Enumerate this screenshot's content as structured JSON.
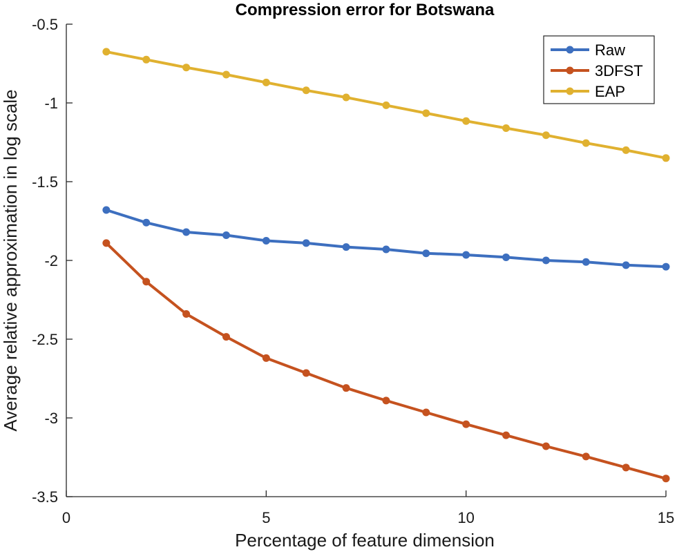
{
  "chart_data": {
    "type": "line",
    "title": "Compression error for Botswana",
    "xlabel": "Percentage of feature dimension",
    "ylabel": "Average relative approximation in log scale",
    "xlim": [
      0,
      15
    ],
    "ylim": [
      -3.5,
      -0.5
    ],
    "xticks": [
      0,
      5,
      10,
      15
    ],
    "xtick_labels": [
      "0",
      "5",
      "10",
      "15"
    ],
    "yticks": [
      -3.5,
      -3,
      -2.5,
      -2,
      -1.5,
      -1,
      -0.5
    ],
    "ytick_labels": [
      "-3.5",
      "-3",
      "-2.5",
      "-2",
      "-1.5",
      "-1",
      "-0.5"
    ],
    "grid": false,
    "legend_position": "top-right",
    "x": [
      1,
      2,
      3,
      4,
      5,
      6,
      7,
      8,
      9,
      10,
      11,
      12,
      13,
      14,
      15
    ],
    "series": [
      {
        "name": "Raw",
        "color": "#3d6fbf",
        "values": [
          -1.68,
          -1.76,
          -1.82,
          -1.84,
          -1.875,
          -1.89,
          -1.915,
          -1.93,
          -1.955,
          -1.965,
          -1.98,
          -2.0,
          -2.01,
          -2.03,
          -2.04
        ]
      },
      {
        "name": "3DFST",
        "color": "#c5521f",
        "values": [
          -1.89,
          -2.135,
          -2.34,
          -2.485,
          -2.62,
          -2.715,
          -2.81,
          -2.89,
          -2.965,
          -3.04,
          -3.11,
          -3.18,
          -3.245,
          -3.315,
          -3.385
        ]
      },
      {
        "name": "EAP",
        "color": "#e0b130",
        "values": [
          -0.675,
          -0.725,
          -0.775,
          -0.82,
          -0.87,
          -0.92,
          -0.965,
          -1.015,
          -1.065,
          -1.115,
          -1.16,
          -1.205,
          -1.255,
          -1.3,
          -1.35
        ]
      }
    ]
  }
}
